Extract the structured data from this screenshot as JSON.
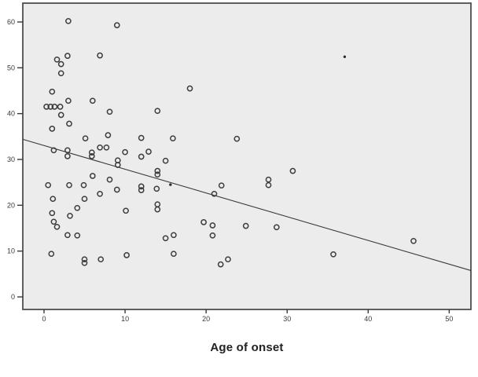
{
  "chart_data": {
    "type": "scatter",
    "title": "",
    "xlabel": "Age of onset",
    "ylabel": "",
    "x_ticks": [
      0,
      10,
      20,
      30,
      40,
      50
    ],
    "y_ticks": [
      0,
      10,
      20,
      30,
      40,
      50,
      60
    ],
    "x_range": [
      -2.62,
      52.68
    ],
    "y_range": [
      -2.74,
      64.11
    ],
    "grid": false,
    "legend": "none",
    "colors": {
      "plot_background": "#ececec",
      "figure_background": "#ffffff",
      "frame_border": "#4f4f4f",
      "marker_stroke": "#3c3c3c",
      "dot_fill": "#2e2e2e",
      "line_color": "#3a3a3a",
      "tick_color": "#3a3a3a",
      "tick_label_color": "#3a3a3a",
      "title_color": "#222222"
    },
    "regression_line": {
      "slope": -0.518,
      "intercept": 33.04
    },
    "points": [
      [
        3.0,
        60.2
      ],
      [
        9.0,
        59.3
      ],
      [
        2.9,
        52.6
      ],
      [
        6.9,
        52.7
      ],
      [
        1.6,
        51.8
      ],
      [
        2.1,
        50.8
      ],
      [
        2.1,
        48.8
      ],
      [
        1.0,
        44.8
      ],
      [
        18.0,
        45.5
      ],
      [
        3.0,
        42.8
      ],
      [
        6.0,
        42.8
      ],
      [
        0.3,
        41.5
      ],
      [
        0.8,
        41.5
      ],
      [
        1.3,
        41.5
      ],
      [
        2.0,
        41.5
      ],
      [
        8.1,
        40.4
      ],
      [
        14.0,
        40.6
      ],
      [
        2.1,
        39.7
      ],
      [
        3.1,
        37.8
      ],
      [
        1.0,
        36.7
      ],
      [
        5.1,
        34.6
      ],
      [
        7.9,
        35.3
      ],
      [
        12.0,
        34.7
      ],
      [
        15.9,
        34.6
      ],
      [
        23.8,
        34.5
      ],
      [
        1.2,
        32.0
      ],
      [
        2.9,
        32.0
      ],
      [
        2.9,
        30.7
      ],
      [
        6.9,
        32.6
      ],
      [
        7.7,
        32.6
      ],
      [
        5.9,
        31.5
      ],
      [
        5.9,
        30.7
      ],
      [
        10.0,
        31.6
      ],
      [
        12.0,
        30.6
      ],
      [
        12.9,
        31.7
      ],
      [
        15.0,
        29.7
      ],
      [
        9.1,
        29.8
      ],
      [
        9.1,
        28.8
      ],
      [
        14.0,
        27.5
      ],
      [
        14.0,
        26.7
      ],
      [
        6.0,
        26.4
      ],
      [
        8.1,
        25.6
      ],
      [
        27.7,
        25.6
      ],
      [
        27.7,
        24.4
      ],
      [
        30.7,
        27.5
      ],
      [
        21.9,
        24.3
      ],
      [
        21.0,
        22.5
      ],
      [
        0.5,
        24.4
      ],
      [
        3.1,
        24.4
      ],
      [
        4.9,
        24.4
      ],
      [
        9.0,
        23.4
      ],
      [
        12.0,
        24.1
      ],
      [
        12.0,
        23.3
      ],
      [
        13.9,
        23.6
      ],
      [
        1.1,
        21.4
      ],
      [
        5.0,
        21.4
      ],
      [
        6.9,
        22.5
      ],
      [
        4.1,
        19.4
      ],
      [
        10.1,
        18.8
      ],
      [
        14.0,
        20.2
      ],
      [
        14.0,
        19.1
      ],
      [
        1.0,
        18.3
      ],
      [
        3.2,
        17.7
      ],
      [
        1.2,
        16.4
      ],
      [
        1.6,
        15.3
      ],
      [
        19.7,
        16.3
      ],
      [
        20.8,
        15.6
      ],
      [
        20.8,
        13.4
      ],
      [
        24.9,
        15.5
      ],
      [
        28.7,
        15.2
      ],
      [
        15.0,
        12.8
      ],
      [
        16.0,
        13.5
      ],
      [
        2.9,
        13.5
      ],
      [
        4.1,
        13.4
      ],
      [
        0.9,
        9.4
      ],
      [
        5.0,
        8.2
      ],
      [
        5.0,
        7.4
      ],
      [
        7.0,
        8.2
      ],
      [
        10.2,
        9.1
      ],
      [
        16.0,
        9.4
      ],
      [
        21.8,
        7.1
      ],
      [
        22.7,
        8.2
      ],
      [
        35.7,
        9.3
      ],
      [
        45.6,
        12.2
      ]
    ],
    "small_dot_points": [
      [
        37.1,
        52.4
      ],
      [
        15.6,
        24.5
      ]
    ]
  }
}
